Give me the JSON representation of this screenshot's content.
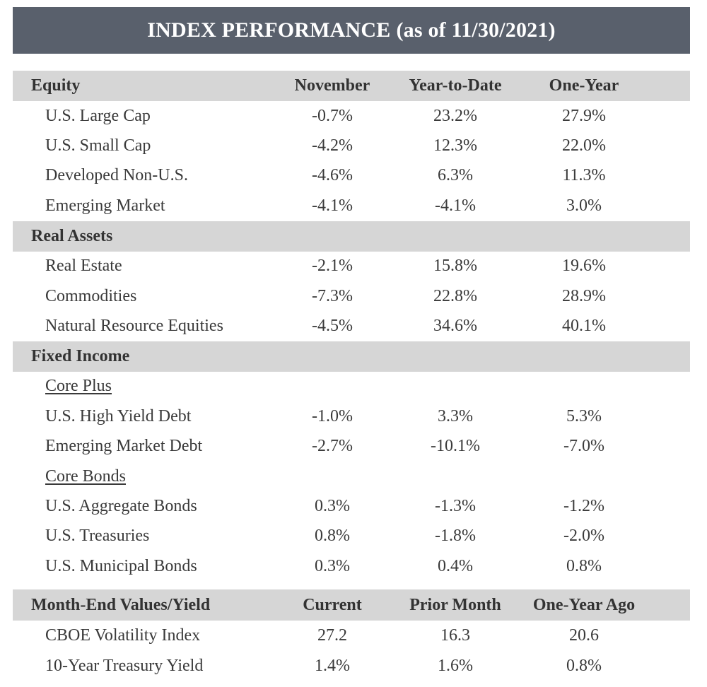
{
  "title": {
    "main": "INDEX PERFORMANCE",
    "sub": "(as of 11/30/2021)"
  },
  "performance_headers": [
    "November",
    "Year-to-Date",
    "One-Year"
  ],
  "sections": [
    {
      "name": "Equity",
      "rows": [
        {
          "label": "U.S. Large Cap",
          "values": [
            "-0.7%",
            "23.2%",
            "27.9%"
          ]
        },
        {
          "label": "U.S. Small Cap",
          "values": [
            "-4.2%",
            "12.3%",
            "22.0%"
          ]
        },
        {
          "label": "Developed Non-U.S.",
          "values": [
            "-4.6%",
            "6.3%",
            "11.3%"
          ]
        },
        {
          "label": "Emerging Market",
          "values": [
            "-4.1%",
            "-4.1%",
            "3.0%"
          ]
        }
      ]
    },
    {
      "name": "Real Assets",
      "rows": [
        {
          "label": "Real Estate",
          "values": [
            "-2.1%",
            "15.8%",
            "19.6%"
          ]
        },
        {
          "label": "Commodities",
          "values": [
            "-7.3%",
            "22.8%",
            "28.9%"
          ]
        },
        {
          "label": "Natural Resource Equities",
          "values": [
            "-4.5%",
            "34.6%",
            "40.1%"
          ]
        }
      ]
    },
    {
      "name": "Fixed Income",
      "subgroups": [
        {
          "name": "Core Plus",
          "rows": [
            {
              "label": "U.S. High Yield Debt",
              "values": [
                "-1.0%",
                "3.3%",
                "5.3%"
              ]
            },
            {
              "label": "Emerging Market Debt",
              "values": [
                "-2.7%",
                "-10.1%",
                "-7.0%"
              ]
            }
          ]
        },
        {
          "name": "Core Bonds",
          "rows": [
            {
              "label": "U.S. Aggregate Bonds",
              "values": [
                "0.3%",
                "-1.3%",
                "-1.2%"
              ]
            },
            {
              "label": "U.S. Treasuries",
              "values": [
                "0.8%",
                "-1.8%",
                "-2.0%"
              ]
            },
            {
              "label": "U.S. Municipal Bonds",
              "values": [
                "0.3%",
                "0.4%",
                "0.8%"
              ]
            }
          ]
        }
      ]
    }
  ],
  "month_end": {
    "name": "Month-End Values/Yield",
    "headers": [
      "Current",
      "Prior Month",
      "One-Year Ago"
    ],
    "rows": [
      {
        "label": "CBOE Volatility Index",
        "values": [
          "27.2",
          "16.3",
          "20.6"
        ]
      },
      {
        "label": "10-Year Treasury Yield",
        "values": [
          "1.4%",
          "1.6%",
          "0.8%"
        ]
      }
    ]
  }
}
